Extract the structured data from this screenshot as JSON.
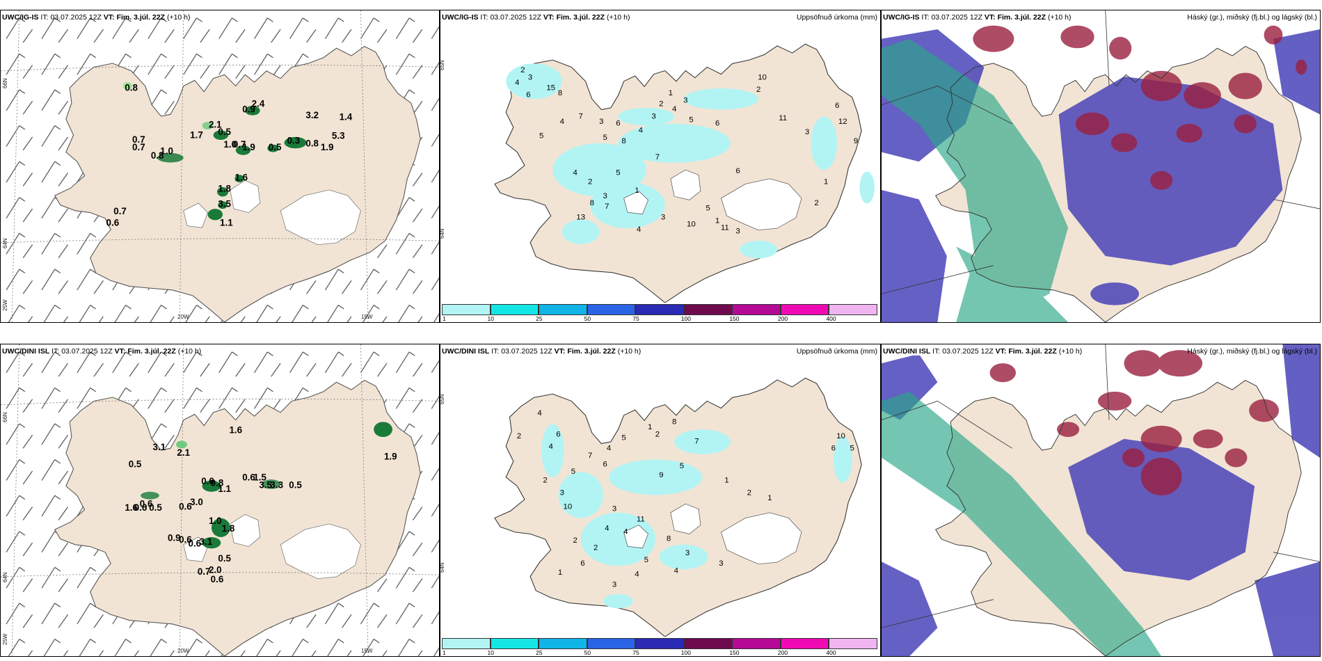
{
  "colors": {
    "land": "#f2e4d4",
    "coast": "#555555",
    "precip_light": "#b2f4f4",
    "glacier": "#ffffff",
    "high_cloud": "#8b1a3a",
    "mid_cloud": "#3c3cb0",
    "low_cloud": "#2aa888"
  },
  "row1": {
    "wind": {
      "model": "UWC/IG-IS",
      "it_label": "IT:",
      "it": "03.07.2025 12Z",
      "vt_label": "VT:",
      "vt": "Fim. 3.júl. 22Z",
      "lead": "(+10 h)",
      "lat_66": "66N",
      "lat_64": "64N",
      "lon_25": "25W",
      "lon_20": "20W",
      "lon_15": "15W",
      "values": [
        "0.8",
        "0.7",
        "0.7",
        "1.0",
        "0.8",
        "1.7",
        "2.1",
        "0.5",
        "1.0",
        "0.7",
        "1.9",
        "0.9",
        "2.4",
        "3.2",
        "1.4",
        "5.3",
        "0.3",
        "0.8",
        "1.9",
        "0.5",
        "1.6",
        "1.8",
        "3.5",
        "1.1",
        "0.7",
        "0.6"
      ]
    },
    "precip": {
      "model": "UWC/IG-IS",
      "it_label": "IT:",
      "it": "03.07.2025 12Z",
      "vt_label": "VT:",
      "vt": "Fim. 3.júl. 22Z",
      "lead": "(+10 h)",
      "right_title": "Uppsöfnuð úrkoma (mm)",
      "lat_65": "65N",
      "lat_64": "64N",
      "values": [
        "2",
        "3",
        "4",
        "6",
        "15",
        "8",
        "5",
        "4",
        "7",
        "3",
        "6",
        "5",
        "8",
        "4",
        "3",
        "2",
        "1",
        "4",
        "3",
        "5",
        "6",
        "10",
        "2",
        "11",
        "3",
        "12",
        "6",
        "7",
        "4",
        "2",
        "3",
        "5",
        "1",
        "13",
        "8",
        "7",
        "10",
        "5",
        "1",
        "4",
        "3",
        "6",
        "2",
        "1",
        "9",
        "11",
        "3"
      ],
      "legend_ticks": [
        "1",
        "10",
        "25",
        "50",
        "75",
        "100",
        "150",
        "200",
        "400"
      ],
      "legend_colors": [
        "#b2f4f4",
        "#14e6e6",
        "#10b4e6",
        "#2a64e6",
        "#2a2ab4",
        "#6e0a4e",
        "#b40a96",
        "#f00ab4",
        "#f0b4f0"
      ]
    },
    "cloud": {
      "model": "UWC/IG-IS",
      "it_label": "IT:",
      "it": "03.07.2025 12Z",
      "vt_label": "VT:",
      "vt": "Fim. 3.júl. 22Z",
      "lead": "(+10 h)",
      "right_title": "Háský (gr.), miðský (fj.bl.) og lágský (bl.)"
    }
  },
  "row2": {
    "wind": {
      "model": "UWC/DINI ISL",
      "it_label": "IT:",
      "it": "03.07.2025 12Z",
      "vt_label": "VT:",
      "vt": "Fim. 3.júl. 22Z",
      "lead": "(+10 h)",
      "lat_66": "66N",
      "lat_64": "64N",
      "lon_25": "25W",
      "lon_20": "20W",
      "lon_15": "15W",
      "values": [
        "3.1",
        "0.5",
        "2.1",
        "1.6",
        "0.6",
        "0.8",
        "1.1",
        "0.6",
        "1.5",
        "3.5",
        "3.3",
        "0.5",
        "1.6",
        "0.6",
        "0.5",
        "0.6",
        "3.0",
        "0.6",
        "1.0",
        "1.8",
        "0.9",
        "0.6",
        "0.6",
        "3.1",
        "0.5",
        "0.7",
        "2.0",
        "0.6",
        "1.9"
      ]
    },
    "precip": {
      "model": "UWC/DINI ISL",
      "it_label": "IT:",
      "it": "03.07.2025 12Z",
      "vt_label": "VT:",
      "vt": "Fim. 3.júl. 22Z",
      "lead": "(+10 h)",
      "right_title": "Uppsöfnuð úrkoma (mm)",
      "lat_65": "65N",
      "lat_64": "64N",
      "values": [
        "4",
        "2",
        "4",
        "6",
        "5",
        "7",
        "2",
        "3",
        "6",
        "4",
        "10",
        "5",
        "1",
        "2",
        "8",
        "11",
        "3",
        "4",
        "5",
        "2",
        "6",
        "1",
        "2",
        "4",
        "8",
        "3",
        "9",
        "5",
        "7",
        "10",
        "1",
        "6",
        "3",
        "4",
        "2",
        "5",
        "1",
        "3",
        "4"
      ],
      "legend_ticks": [
        "1",
        "10",
        "25",
        "50",
        "75",
        "100",
        "150",
        "200",
        "400"
      ],
      "legend_colors": [
        "#b2f4f4",
        "#14e6e6",
        "#10b4e6",
        "#2a64e6",
        "#2a2ab4",
        "#6e0a4e",
        "#b40a96",
        "#f00ab4",
        "#f0b4f0"
      ]
    },
    "cloud": {
      "model": "UWC/DINI ISL",
      "it_label": "IT:",
      "it": "03.07.2025 12Z",
      "vt_label": "VT:",
      "vt": "Fim. 3.júl. 22Z",
      "lead": "(+10 h)",
      "right_title": "Háský (gr.), miðský (fj.bl.) og lágský (bl.)"
    }
  }
}
